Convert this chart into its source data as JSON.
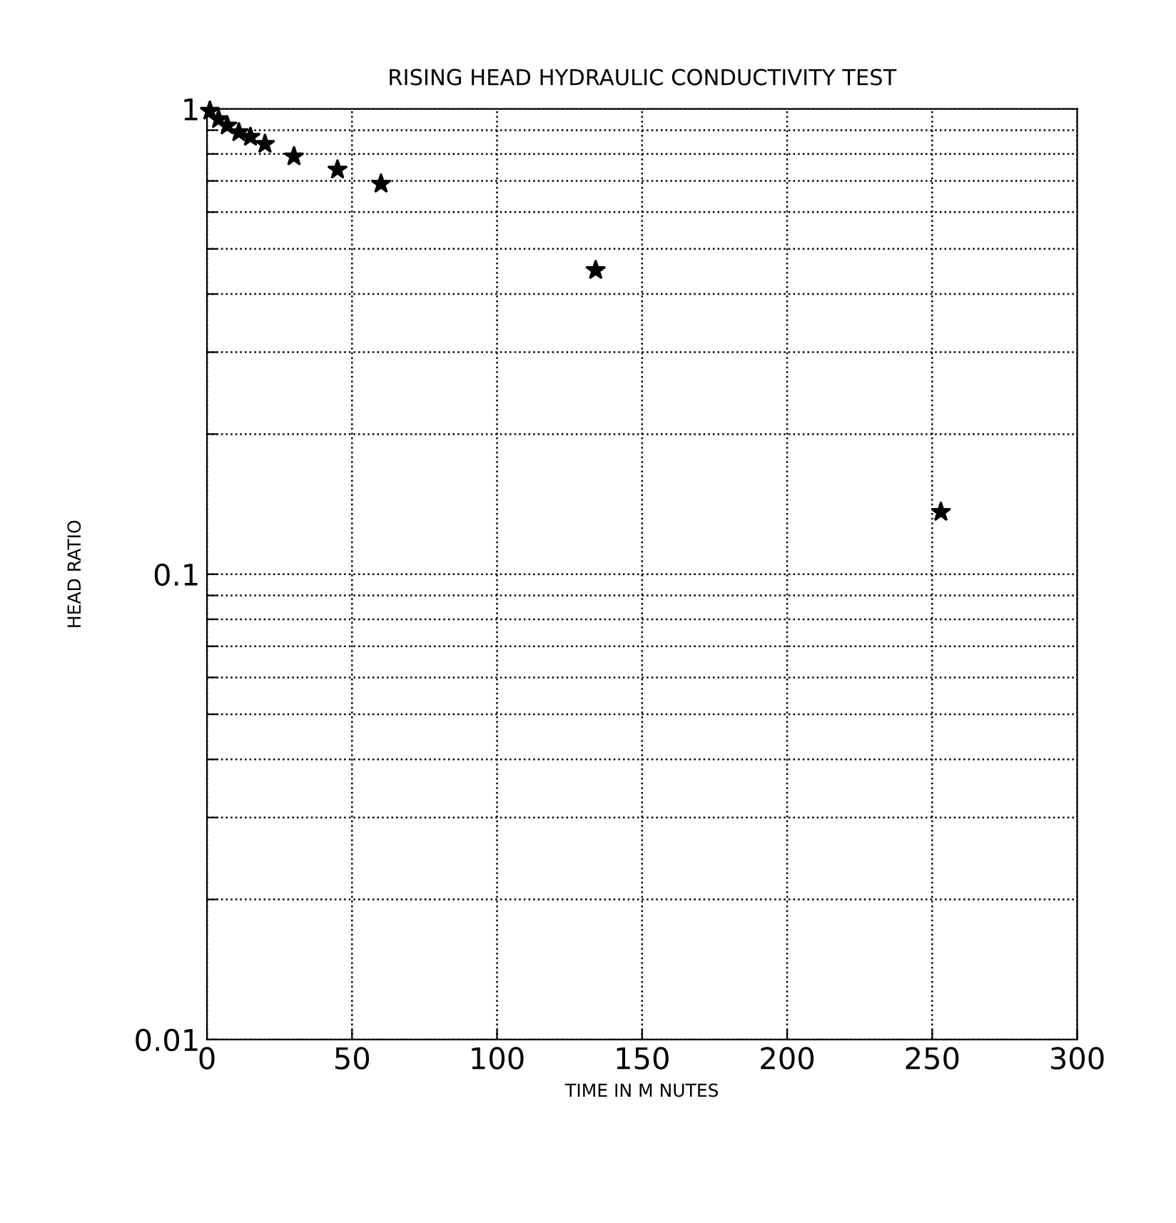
{
  "chart_data": {
    "type": "scatter",
    "title": "RISING HEAD HYDRAULIC CONDUCTIVITY TEST",
    "xlabel": "TIME IN M NUTES",
    "ylabel": "HEAD RATIO",
    "x": [
      1,
      4,
      7,
      11,
      15,
      20,
      30,
      45,
      60,
      134,
      253
    ],
    "values": [
      0.99,
      0.95,
      0.92,
      0.89,
      0.87,
      0.84,
      0.79,
      0.74,
      0.69,
      0.45,
      0.136
    ],
    "color": "#000000",
    "marker": "star",
    "log": "y",
    "grid": true,
    "xlim": [
      0,
      300
    ],
    "xticks": [
      0,
      50,
      100,
      150,
      200,
      250,
      300
    ],
    "ylim": [
      0.01,
      1
    ],
    "yticks": [
      0.01,
      {
        "value": 0.02,
        "label": null
      },
      {
        "value": 0.03,
        "label": null
      },
      {
        "value": 0.04,
        "label": null
      },
      {
        "value": 0.05,
        "label": null
      },
      {
        "value": 0.06,
        "label": null
      },
      {
        "value": 0.07,
        "label": null
      },
      {
        "value": 0.08,
        "label": null
      },
      {
        "value": 0.09,
        "label": null
      },
      0.1,
      {
        "value": 0.2,
        "label": null
      },
      {
        "value": 0.3,
        "label": null
      },
      {
        "value": 0.4,
        "label": null
      },
      {
        "value": 0.5,
        "label": null
      },
      {
        "value": 0.6,
        "label": null
      },
      {
        "value": 0.7,
        "label": null
      },
      {
        "value": 0.8,
        "label": null
      },
      {
        "value": 0.9,
        "label": null
      },
      1
    ]
  }
}
